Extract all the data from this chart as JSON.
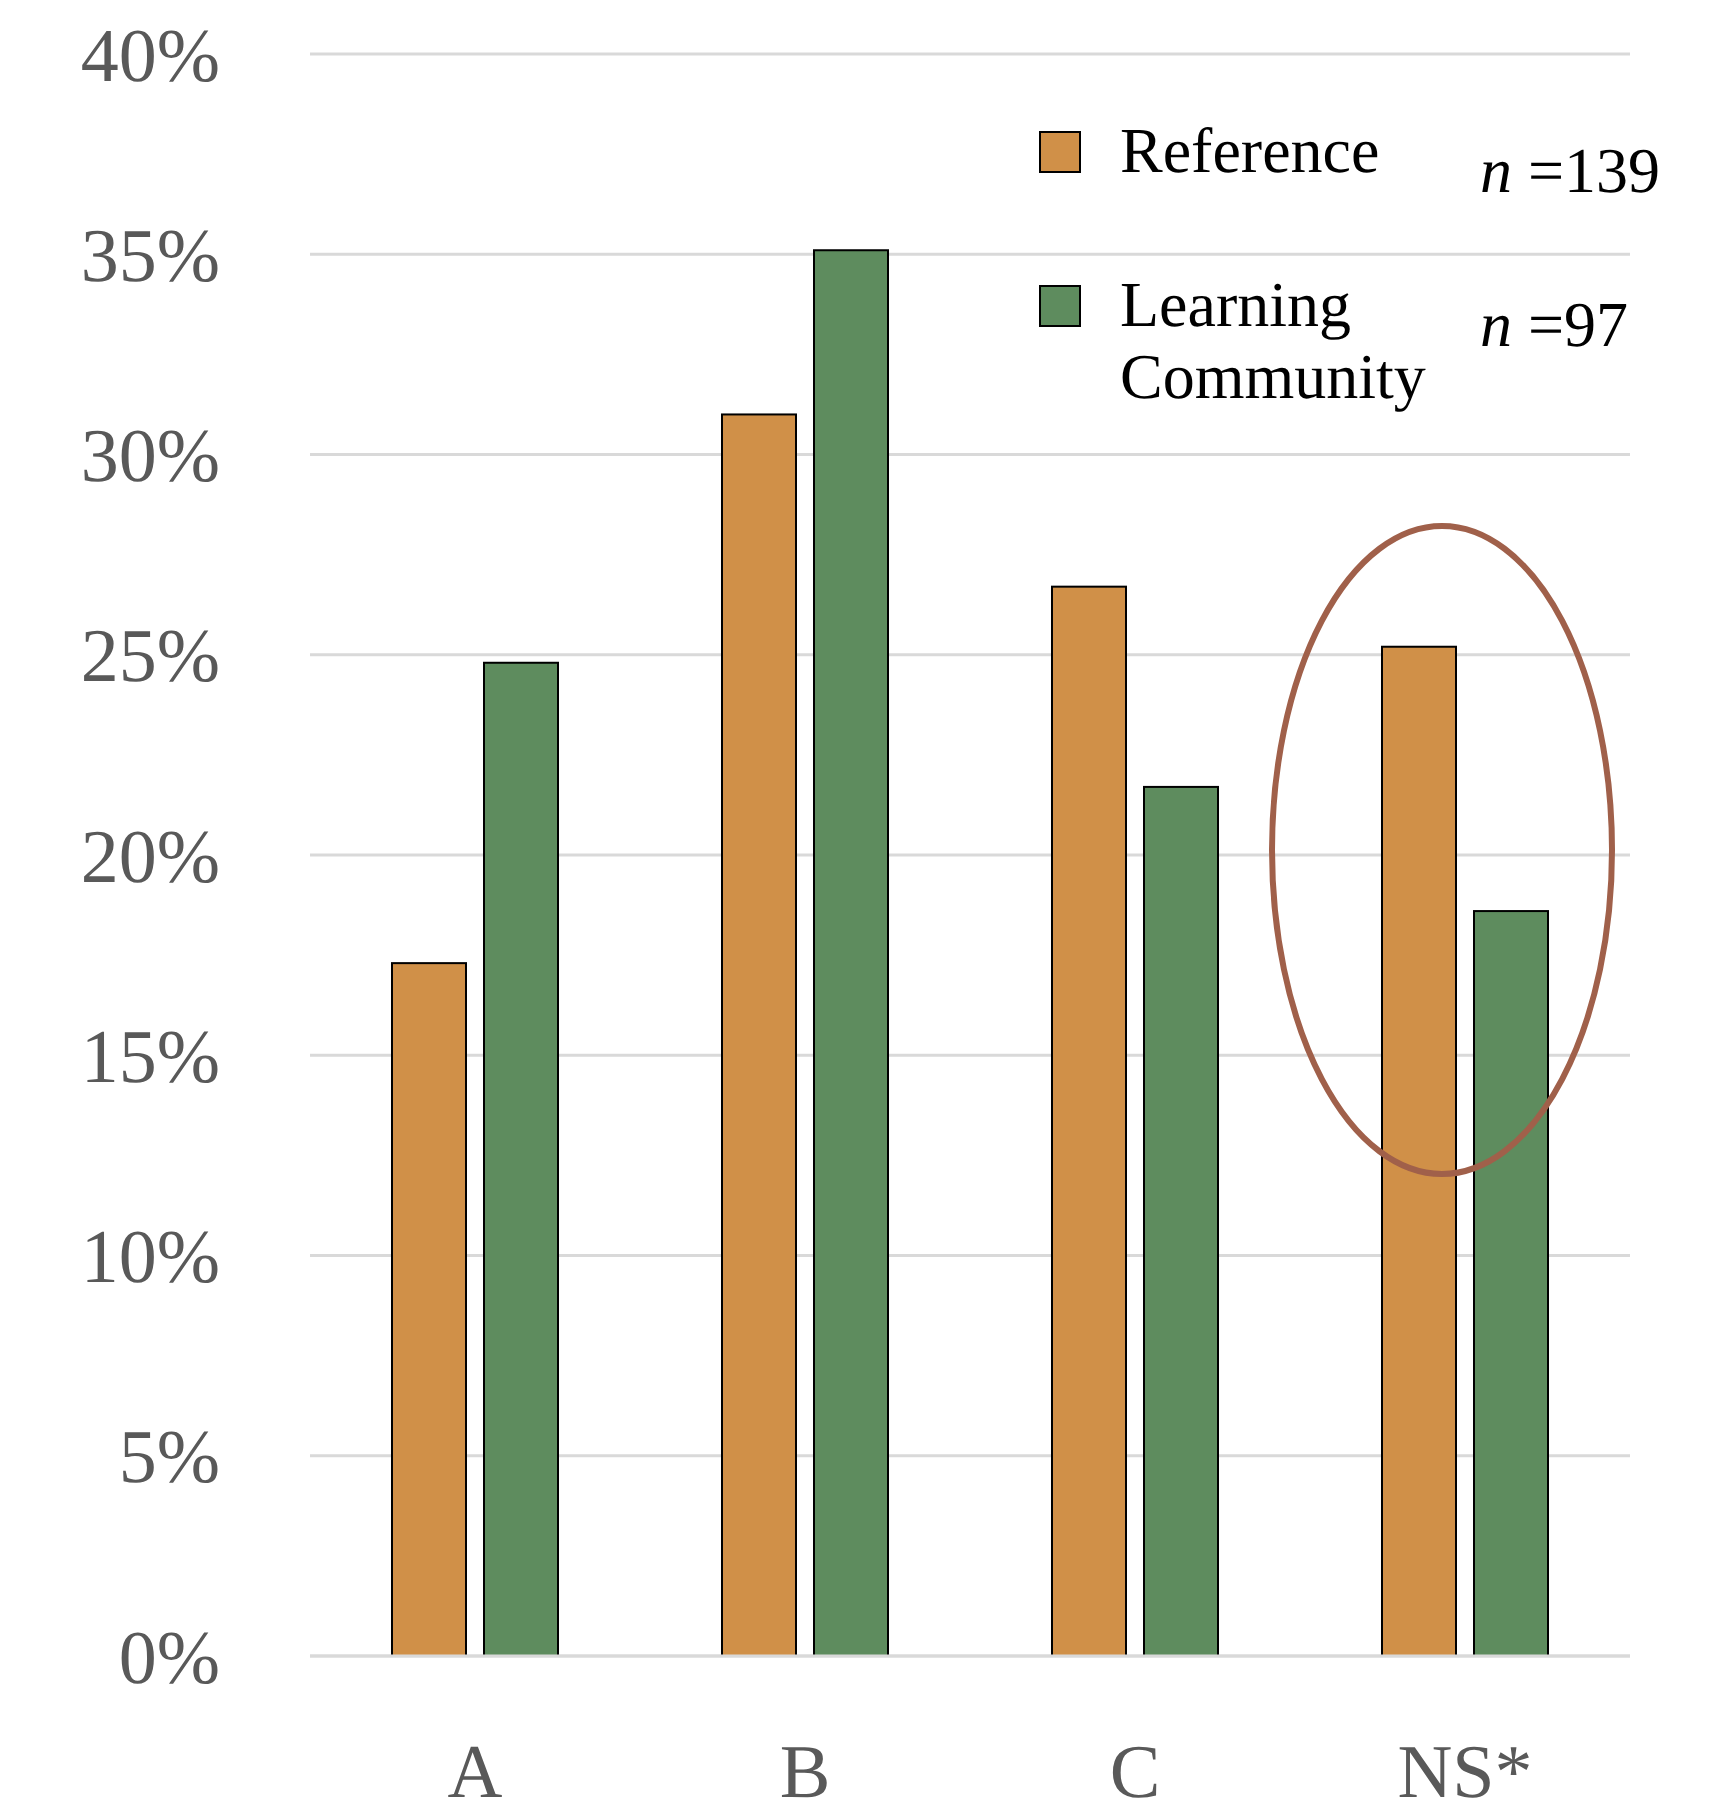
{
  "chart_data": {
    "type": "bar",
    "categories": [
      "A",
      "B",
      "C",
      "NS*"
    ],
    "series": [
      {
        "name": "Reference",
        "color": "#d09048",
        "values": [
          17.3,
          31.0,
          26.7,
          25.2
        ]
      },
      {
        "name": "Learning Community",
        "color": "#5e8c5e",
        "values": [
          24.8,
          35.1,
          21.7,
          18.6
        ]
      }
    ],
    "ylim": [
      0,
      40
    ],
    "yticks": [
      {
        "value": 0,
        "label": "0%"
      },
      {
        "value": 5,
        "label": "5%"
      },
      {
        "value": 10,
        "label": "10%"
      },
      {
        "value": 15,
        "label": "15%"
      },
      {
        "value": 20,
        "label": "20%"
      },
      {
        "value": 25,
        "label": "25%"
      },
      {
        "value": 30,
        "label": "30%"
      },
      {
        "value": 35,
        "label": "35%"
      },
      {
        "value": 40,
        "label": "40%"
      }
    ],
    "grid": "y",
    "legend": "top right",
    "annotations": [
      "n =139",
      "n =97"
    ]
  }
}
